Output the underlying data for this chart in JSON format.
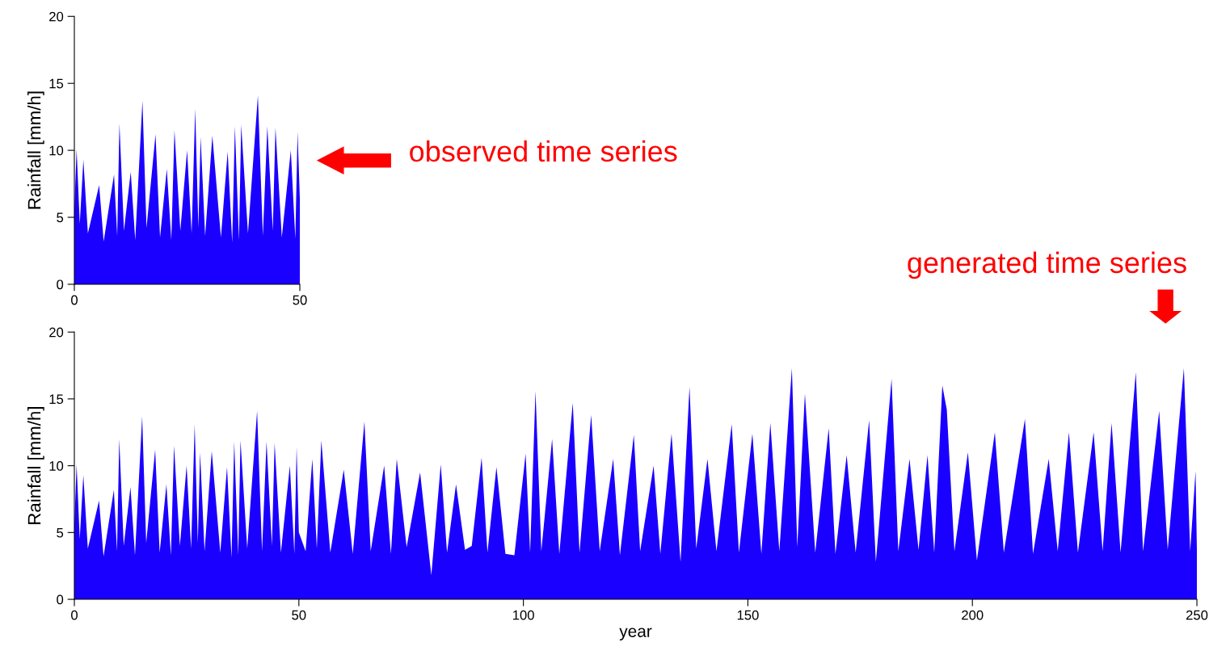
{
  "chart_data": [
    {
      "type": "area",
      "ylabel": "Rainfall [mm/h]",
      "xlim": [
        0,
        50
      ],
      "ylim": [
        0,
        20
      ],
      "xticks": [
        0,
        50
      ],
      "yticks": [
        0,
        5,
        10,
        15,
        20
      ],
      "grid": false,
      "legend": false,
      "annotations": [
        "observed time series"
      ],
      "series": [
        {
          "color": "#1a00ff",
          "x": [
            0,
            0.5,
            1.2,
            2.0,
            3.0,
            5.5,
            6.5,
            8.8,
            9.5,
            10,
            11,
            12.5,
            13.5,
            15.1,
            16,
            18,
            19,
            20.5,
            21.5,
            22.2,
            23.5,
            25,
            26,
            26.8,
            27.5,
            28,
            29,
            30.6,
            32.5,
            34,
            35,
            35.6,
            36.5,
            37,
            38.5,
            40.7,
            41.8,
            42.8,
            44,
            44.6,
            46,
            48,
            49,
            49.5,
            50
          ],
          "values": [
            5.6,
            10.1,
            4.5,
            9.3,
            3.8,
            7.4,
            3.2,
            8.2,
            3.6,
            12.0,
            4.0,
            8.4,
            3.3,
            13.7,
            4.2,
            11.2,
            3.5,
            8.6,
            3.3,
            11.5,
            4.0,
            10.0,
            3.8,
            13.1,
            4.2,
            11.0,
            3.6,
            11.1,
            3.5,
            9.9,
            3.1,
            11.8,
            3.3,
            11.9,
            3.8,
            14.1,
            3.6,
            11.8,
            4.0,
            11.7,
            3.5,
            10.0,
            3.4,
            11.4,
            6.4
          ]
        }
      ]
    },
    {
      "type": "area",
      "xlabel": "year",
      "ylabel": "Rainfall [mm/h]",
      "xlim": [
        0,
        250
      ],
      "ylim": [
        0,
        20
      ],
      "xticks": [
        0,
        50,
        100,
        150,
        200,
        250
      ],
      "yticks": [
        0,
        5,
        10,
        15,
        20
      ],
      "grid": false,
      "legend": false,
      "annotations": [
        "generated time series"
      ],
      "series": [
        {
          "color": "#1a00ff",
          "x": [
            0,
            0.5,
            1.2,
            2.0,
            3.0,
            5.5,
            6.5,
            8.8,
            9.5,
            10,
            11,
            12.5,
            13.5,
            15.1,
            16,
            18,
            19,
            20.5,
            21.5,
            22.2,
            23.5,
            25,
            26,
            26.8,
            27.5,
            28,
            29,
            30.6,
            32.5,
            34,
            35,
            35.6,
            36.5,
            37,
            38.5,
            40.7,
            41.8,
            42.8,
            44,
            44.6,
            46,
            48,
            49,
            49.5,
            50,
            51.5,
            53,
            54,
            55,
            57,
            60,
            62,
            64.6,
            66,
            69,
            70.5,
            71.8,
            74,
            77,
            79.5,
            81.6,
            83,
            85,
            87,
            88.5,
            90.7,
            92,
            94,
            96,
            98,
            100.5,
            101.5,
            102.7,
            104,
            106.4,
            108,
            111,
            112.5,
            115.1,
            117,
            120,
            121.5,
            124.6,
            126,
            129,
            130.5,
            133,
            135,
            137,
            138.5,
            141,
            143,
            146.4,
            148,
            151,
            153,
            155,
            157,
            159.8,
            161,
            162.7,
            165,
            168,
            169.5,
            172,
            174,
            177,
            178.5,
            182,
            183.5,
            186,
            188,
            190,
            191.5,
            193.3,
            194.3,
            196,
            199,
            201,
            205,
            207,
            211.7,
            213.5,
            217,
            219,
            221.5,
            223.5,
            227,
            229,
            231,
            233,
            236.4,
            238,
            241.6,
            243.5,
            245.5,
            247.1,
            248.5,
            249.7,
            250
          ],
          "values": [
            5.6,
            10.1,
            4.5,
            9.3,
            3.8,
            7.4,
            3.2,
            8.2,
            3.6,
            12.0,
            4.0,
            8.4,
            3.3,
            13.7,
            4.2,
            11.2,
            3.5,
            8.6,
            3.3,
            11.5,
            4.0,
            10.0,
            3.8,
            13.1,
            4.2,
            11.0,
            3.6,
            11.1,
            3.5,
            9.9,
            3.1,
            11.8,
            3.3,
            11.9,
            3.8,
            14.1,
            3.6,
            11.8,
            4.0,
            11.7,
            3.5,
            10.0,
            3.4,
            11.4,
            5.0,
            3.6,
            10.5,
            3.8,
            11.9,
            3.5,
            9.7,
            3.4,
            13.3,
            3.6,
            10.0,
            3.4,
            10.5,
            3.9,
            9.5,
            1.8,
            10.1,
            3.5,
            8.6,
            3.7,
            4.0,
            10.6,
            3.5,
            9.9,
            3.4,
            3.3,
            10.9,
            3.5,
            15.6,
            3.6,
            12.0,
            3.4,
            14.7,
            3.5,
            13.8,
            3.6,
            10.5,
            3.3,
            12.3,
            3.6,
            10.0,
            3.4,
            12.4,
            2.8,
            15.9,
            3.8,
            10.5,
            3.6,
            13.1,
            3.5,
            12.4,
            3.4,
            13.2,
            3.6,
            17.3,
            3.9,
            15.4,
            3.5,
            12.8,
            3.4,
            10.8,
            3.5,
            13.4,
            2.8,
            16.5,
            3.6,
            10.5,
            3.7,
            10.8,
            3.5,
            16.0,
            14.2,
            3.6,
            11.0,
            2.9,
            12.5,
            3.5,
            13.5,
            3.4,
            10.5,
            3.6,
            12.5,
            3.5,
            12.5,
            3.6,
            13.2,
            3.5,
            17.0,
            3.6,
            14.1,
            3.7,
            11.3,
            17.3,
            3.6,
            9.6,
            3.6
          ]
        }
      ]
    }
  ]
}
